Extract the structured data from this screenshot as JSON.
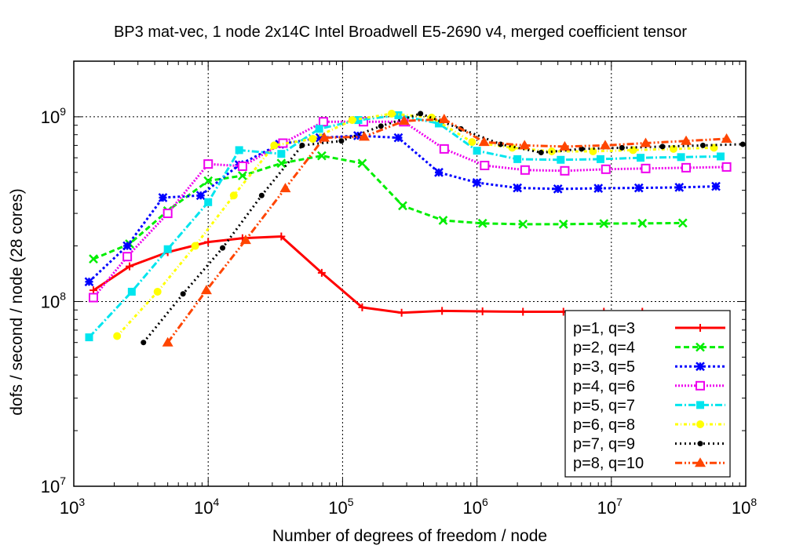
{
  "chart_data": {
    "type": "line",
    "title": "BP3 mat-vec, 1 node 2x14C Intel Broadwell E5-2690 v4, merged coefficient tensor",
    "xlabel": "Number of degrees of freedom / node",
    "ylabel": "dofs / second / node (28 cores)",
    "xscale": "log",
    "yscale": "log",
    "xlim": [
      1000,
      100000000
    ],
    "ylim": [
      10000000,
      2000000000
    ],
    "grid": true,
    "legend_position": "bottom-right",
    "x_ticks": [
      {
        "base": "10",
        "exp": "3"
      },
      {
        "base": "10",
        "exp": "4"
      },
      {
        "base": "10",
        "exp": "5"
      },
      {
        "base": "10",
        "exp": "6"
      },
      {
        "base": "10",
        "exp": "7"
      },
      {
        "base": "10",
        "exp": "8"
      }
    ],
    "y_ticks": [
      {
        "base": "10",
        "exp": "7"
      },
      {
        "base": "10",
        "exp": "8"
      },
      {
        "base": "10",
        "exp": "9"
      }
    ],
    "series": [
      {
        "name": "p=1, q=3",
        "color": "#ff0000",
        "dash": "",
        "marker": "plus",
        "x": [
          1400,
          2600,
          5000,
          10000,
          18000,
          35000,
          70000,
          140000,
          275000,
          550000,
          1100000,
          2200000,
          4400000,
          8800000,
          17000000
        ],
        "y": [
          115000000,
          155000000,
          185000000,
          210000000,
          220000000,
          225000000,
          143000000,
          93000000,
          87000000,
          89000000,
          88500000,
          88000000,
          88000000,
          88000000,
          88000000
        ]
      },
      {
        "name": "p=2, q=4",
        "color": "#00ee00",
        "dash": "7,4",
        "marker": "x",
        "x": [
          1400,
          2600,
          5000,
          10000,
          18000,
          35000,
          70000,
          140000,
          280000,
          560000,
          1100000,
          2200000,
          4400000,
          8800000,
          17000000,
          34000000
        ],
        "y": [
          170000000,
          205000000,
          310000000,
          450000000,
          480000000,
          560000000,
          615000000,
          560000000,
          330000000,
          275000000,
          265000000,
          262000000,
          262000000,
          264000000,
          265000000,
          266000000
        ]
      },
      {
        "name": "p=3, q=5",
        "color": "#0000ff",
        "dash": "3,3",
        "marker": "star",
        "x": [
          1300,
          2500,
          4600,
          8800,
          17000,
          34000,
          68000,
          130000,
          260000,
          520000,
          1000000,
          2000000,
          4000000,
          8000000,
          16000000,
          32000000,
          60000000
        ],
        "y": [
          128000000,
          200000000,
          365000000,
          375000000,
          550000000,
          710000000,
          770000000,
          790000000,
          770000000,
          500000000,
          440000000,
          412000000,
          407000000,
          410000000,
          412000000,
          415000000,
          420000000
        ]
      },
      {
        "name": "p=4, q=6",
        "color": "#ee00ee",
        "dash": "2,2",
        "marker": "square",
        "x": [
          1400,
          2500,
          5000,
          10000,
          18000,
          36000,
          72000,
          143000,
          285000,
          570000,
          1140000,
          2280000,
          4500000,
          9100000,
          18000000,
          36000000,
          72000000
        ],
        "y": [
          105000000,
          175000000,
          300000000,
          555000000,
          540000000,
          720000000,
          940000000,
          940000000,
          940000000,
          670000000,
          545000000,
          515000000,
          510000000,
          520000000,
          525000000,
          530000000,
          535000000
        ]
      },
      {
        "name": "p=5, q=7",
        "color": "#00e5ee",
        "dash": "9,3,2,3",
        "marker": "filled-square",
        "x": [
          1300,
          2700,
          5000,
          10000,
          17000,
          35000,
          67000,
          131000,
          260000,
          520000,
          1000000,
          2000000,
          4200000,
          8300000,
          16500000,
          33000000,
          65000000
        ],
        "y": [
          64000000,
          113000000,
          192000000,
          345000000,
          660000000,
          630000000,
          860000000,
          960000000,
          1020000000,
          920000000,
          655000000,
          590000000,
          585000000,
          590000000,
          600000000,
          605000000,
          610000000
        ]
      },
      {
        "name": "p=6, q=8",
        "color": "#ffff00",
        "dash": "4,3,1,3",
        "marker": "circle",
        "x": [
          2100,
          4200,
          8000,
          15500,
          31000,
          60000,
          118000,
          232000,
          460000,
          920000,
          1830000,
          3600000,
          7300000,
          14500000,
          29000000,
          58000000
        ],
        "y": [
          65000000,
          113000000,
          200000000,
          375000000,
          700000000,
          760000000,
          960000000,
          1040000000,
          990000000,
          730000000,
          680000000,
          650000000,
          650000000,
          660000000,
          670000000,
          680000000
        ]
      },
      {
        "name": "p=7, q=9",
        "color": "#000000",
        "dash": "2,4",
        "marker": "filled-circle",
        "x": [
          3300,
          6500,
          12800,
          25000,
          50000,
          98000,
          193000,
          380000,
          760000,
          1500000,
          3000000,
          6000000,
          12000000,
          24000000,
          48000000,
          95000000
        ],
        "y": [
          60000000,
          110000000,
          195000000,
          375000000,
          700000000,
          740000000,
          890000000,
          1040000000,
          860000000,
          710000000,
          640000000,
          670000000,
          680000000,
          690000000,
          700000000,
          710000000
        ]
      },
      {
        "name": "p=8, q=10",
        "color": "#ff4500",
        "dash": "9,3,2,3,2,3",
        "marker": "triangle",
        "x": [
          5000,
          9700,
          19000,
          37500,
          73000,
          145000,
          287000,
          570000,
          1130000,
          2260000,
          4500000,
          9000000,
          18000000,
          36000000,
          72000000
        ],
        "y": [
          60000000,
          115000000,
          215000000,
          410000000,
          770000000,
          780000000,
          950000000,
          970000000,
          730000000,
          700000000,
          690000000,
          700000000,
          720000000,
          740000000,
          760000000
        ]
      }
    ]
  }
}
